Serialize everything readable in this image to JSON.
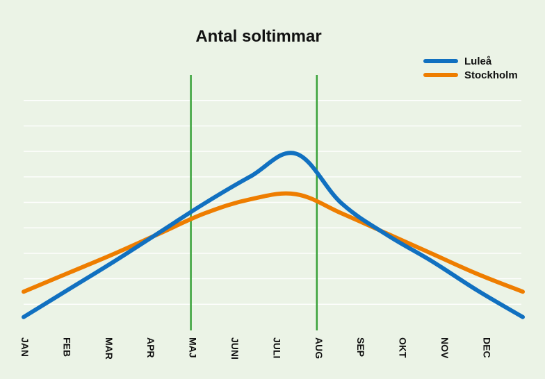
{
  "chart_data": {
    "type": "line",
    "title": "Antal soltimmar",
    "categories": [
      "JAN",
      "FEB",
      "MAR",
      "APR",
      "MAJ",
      "JUNI",
      "JULI",
      "AUG",
      "SEP",
      "OKT",
      "NOV",
      "DEC"
    ],
    "series": [
      {
        "name": "Luleå",
        "color": "#1170c0",
        "values": [
          0.5,
          1.6,
          2.7,
          3.85,
          5.0,
          6.05,
          6.95,
          5.0,
          3.75,
          2.7,
          1.55,
          0.5
        ]
      },
      {
        "name": "Stockholm",
        "color": "#ee7d00",
        "values": [
          1.5,
          2.25,
          3.0,
          3.8,
          4.6,
          5.15,
          5.35,
          4.6,
          3.8,
          3.0,
          2.2,
          1.5
        ]
      }
    ],
    "markers": [
      {
        "color": "#3aa23a",
        "at": "MAJ"
      },
      {
        "color": "#3aa23a",
        "at": "AUG"
      }
    ],
    "ylim": [
      0,
      8
    ],
    "grid": true,
    "legend_position": "top-right",
    "background_color": "#ebf3e6",
    "gridline_color": "#ffffff"
  }
}
